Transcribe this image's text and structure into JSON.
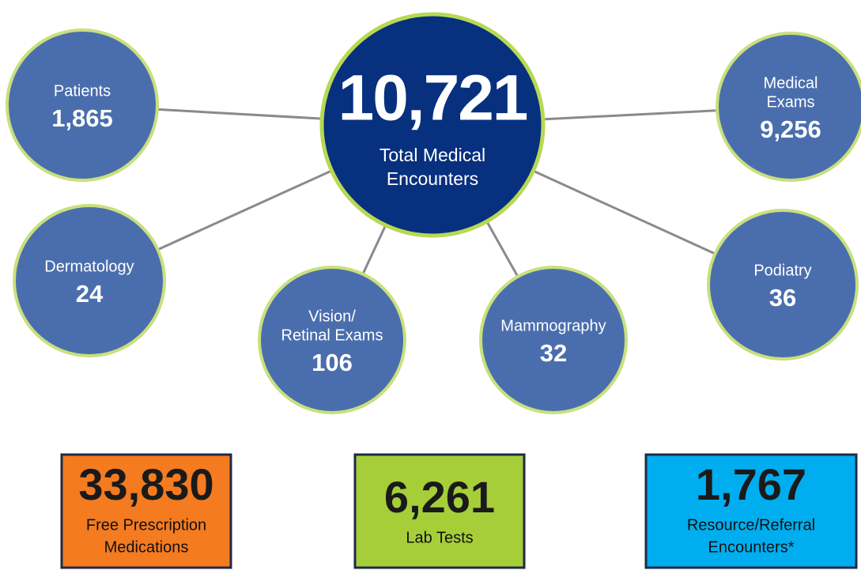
{
  "center": {
    "value": "10,721",
    "label": [
      "Total Medical",
      "Encounters"
    ]
  },
  "nodes": [
    {
      "label": [
        "Patients"
      ],
      "value": "1,865"
    },
    {
      "label": [
        "Medical",
        "Exams"
      ],
      "value": "9,256"
    },
    {
      "label": [
        "Dermatology"
      ],
      "value": "24"
    },
    {
      "label": [
        "Vision/",
        "Retinal Exams"
      ],
      "value": "106"
    },
    {
      "label": [
        "Mammography"
      ],
      "value": "32"
    },
    {
      "label": [
        "Podiatry"
      ],
      "value": "36"
    }
  ],
  "boxes": [
    {
      "value": "33,830",
      "label": [
        "Free Prescription",
        "Medications"
      ]
    },
    {
      "value": "6,261",
      "label": [
        "Lab Tests"
      ]
    },
    {
      "value": "1,767",
      "label": [
        "Resource/Referral",
        "Encounters*"
      ]
    }
  ]
}
